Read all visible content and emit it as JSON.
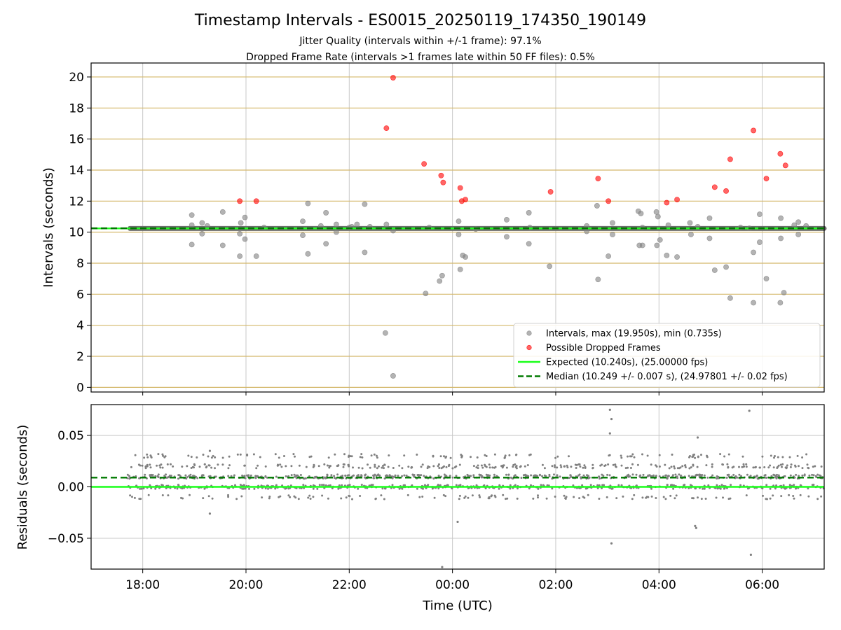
{
  "chart_data": {
    "type": "scatter",
    "title": "Timestamp Intervals - ES0015_20250119_174350_190149",
    "subtitle_lines": [
      "Jitter Quality (intervals within +/-1 frame): 97.1%",
      "Dropped Frame Rate (intervals >1 frames late within 50 FF files): 0.5%"
    ],
    "x_label": "Time (UTC)",
    "x_unit": "hours since 17:00 UTC (2025-01-19)",
    "x_range": [
      17.0,
      31.2
    ],
    "x_ticks": [
      {
        "value": 18,
        "label": "18:00"
      },
      {
        "value": 20,
        "label": "20:00"
      },
      {
        "value": 22,
        "label": "22:00"
      },
      {
        "value": 24,
        "label": "00:00"
      },
      {
        "value": 26,
        "label": "02:00"
      },
      {
        "value": 28,
        "label": "04:00"
      },
      {
        "value": 30,
        "label": "06:00"
      }
    ],
    "grid": true,
    "colors": {
      "intervals": "#808080",
      "dropped": "#ff0000",
      "expected": "#1aff1a",
      "median": "#007a00",
      "grid_top": "#d4b86a",
      "grid_bottom": "#c8c8c8",
      "band": "#6e6e6e"
    },
    "top_panel": {
      "y_label": "Intervals (seconds)",
      "y_range": [
        -0.3,
        20.9
      ],
      "y_ticks": [
        0,
        2,
        4,
        6,
        8,
        10,
        12,
        14,
        16,
        18,
        20
      ],
      "legend_position": "lower-right",
      "legend": [
        {
          "key": "intervals",
          "label": "Intervals, max (19.950s), min (0.735s)",
          "marker": "dot"
        },
        {
          "key": "dropped",
          "label": "Possible Dropped Frames",
          "marker": "dot"
        },
        {
          "key": "expected",
          "label": "Expected (10.240s), (25.00000 fps)",
          "marker": "line"
        },
        {
          "key": "median",
          "label": "Median (10.249 +/- 0.007 s), (24.97801 +/- 0.02 fps)",
          "marker": "dashed"
        }
      ],
      "expected_value": 10.24,
      "median_value": 10.249,
      "baseline_x_range": [
        17.75,
        31.2
      ],
      "series": [
        {
          "name": "Intervals",
          "points": [
            [
              18.95,
              11.1
            ],
            [
              18.95,
              10.45
            ],
            [
              18.95,
              9.2
            ],
            [
              19.15,
              10.6
            ],
            [
              19.15,
              9.9
            ],
            [
              19.25,
              10.4
            ],
            [
              19.55,
              11.3
            ],
            [
              19.55,
              9.15
            ],
            [
              19.88,
              8.45
            ],
            [
              19.88,
              9.9
            ],
            [
              19.9,
              10.6
            ],
            [
              19.98,
              9.55
            ],
            [
              19.98,
              10.95
            ],
            [
              20.2,
              8.45
            ],
            [
              20.35,
              10.3
            ],
            [
              21.1,
              10.7
            ],
            [
              21.1,
              9.8
            ],
            [
              21.2,
              11.85
            ],
            [
              21.2,
              8.6
            ],
            [
              21.45,
              10.4
            ],
            [
              21.55,
              11.25
            ],
            [
              21.55,
              9.25
            ],
            [
              21.75,
              10.5
            ],
            [
              21.75,
              10.0
            ],
            [
              22.0,
              10.3
            ],
            [
              22.05,
              10.35
            ],
            [
              22.15,
              10.5
            ],
            [
              22.3,
              11.8
            ],
            [
              22.3,
              8.7
            ],
            [
              22.4,
              10.35
            ],
            [
              22.7,
              3.5
            ],
            [
              22.72,
              10.5
            ],
            [
              22.85,
              0.74
            ],
            [
              22.85,
              10.1
            ],
            [
              23.48,
              6.05
            ],
            [
              23.55,
              10.3
            ],
            [
              23.75,
              6.85
            ],
            [
              23.8,
              7.2
            ],
            [
              24.12,
              10.7
            ],
            [
              24.12,
              9.85
            ],
            [
              24.15,
              7.6
            ],
            [
              24.2,
              8.5
            ],
            [
              24.25,
              8.4
            ],
            [
              24.45,
              10.2
            ],
            [
              25.05,
              10.8
            ],
            [
              25.05,
              9.7
            ],
            [
              25.48,
              11.25
            ],
            [
              25.48,
              9.25
            ],
            [
              25.5,
              10.3
            ],
            [
              25.88,
              7.8
            ],
            [
              26.6,
              10.4
            ],
            [
              26.6,
              10.05
            ],
            [
              26.8,
              11.7
            ],
            [
              26.82,
              6.95
            ],
            [
              27.02,
              8.45
            ],
            [
              27.1,
              10.6
            ],
            [
              27.1,
              9.85
            ],
            [
              27.6,
              11.35
            ],
            [
              27.62,
              9.15
            ],
            [
              27.65,
              11.2
            ],
            [
              27.68,
              9.15
            ],
            [
              27.68,
              10.3
            ],
            [
              27.95,
              11.3
            ],
            [
              27.96,
              9.15
            ],
            [
              27.98,
              11.0
            ],
            [
              28.02,
              9.5
            ],
            [
              28.15,
              8.5
            ],
            [
              28.18,
              10.45
            ],
            [
              28.35,
              8.4
            ],
            [
              28.6,
              10.6
            ],
            [
              28.62,
              9.85
            ],
            [
              28.75,
              10.35
            ],
            [
              28.98,
              10.9
            ],
            [
              28.98,
              9.6
            ],
            [
              29.08,
              7.55
            ],
            [
              29.3,
              7.75
            ],
            [
              29.38,
              5.75
            ],
            [
              29.58,
              10.3
            ],
            [
              29.75,
              10.25
            ],
            [
              29.83,
              5.45
            ],
            [
              29.83,
              8.7
            ],
            [
              29.95,
              11.15
            ],
            [
              29.95,
              9.35
            ],
            [
              30.08,
              7.0
            ],
            [
              30.35,
              5.45
            ],
            [
              30.36,
              10.9
            ],
            [
              30.36,
              9.6
            ],
            [
              30.42,
              6.1
            ],
            [
              30.62,
              10.45
            ],
            [
              30.7,
              10.65
            ],
            [
              30.7,
              9.85
            ],
            [
              30.85,
              10.4
            ]
          ]
        },
        {
          "name": "Possible Dropped Frames",
          "points": [
            [
              19.88,
              12.0
            ],
            [
              20.2,
              12.0
            ],
            [
              22.72,
              16.7
            ],
            [
              22.85,
              19.95
            ],
            [
              23.45,
              14.4
            ],
            [
              23.78,
              13.65
            ],
            [
              23.82,
              13.2
            ],
            [
              24.15,
              12.85
            ],
            [
              24.18,
              12.0
            ],
            [
              24.25,
              12.1
            ],
            [
              25.9,
              12.6
            ],
            [
              26.82,
              13.45
            ],
            [
              27.02,
              12.0
            ],
            [
              28.15,
              11.9
            ],
            [
              28.35,
              12.1
            ],
            [
              29.08,
              12.9
            ],
            [
              29.3,
              12.65
            ],
            [
              29.38,
              14.7
            ],
            [
              29.83,
              16.55
            ],
            [
              30.08,
              13.45
            ],
            [
              30.35,
              15.05
            ],
            [
              30.45,
              14.3
            ]
          ]
        }
      ]
    },
    "bottom_panel": {
      "y_label": "Residuals (seconds)",
      "y_range": [
        -0.08,
        0.08
      ],
      "y_ticks": [
        {
          "value": 0.05,
          "label": "0.05"
        },
        {
          "value": 0.0,
          "label": "0.00"
        },
        {
          "value": -0.05,
          "label": "−0.05"
        }
      ],
      "expected_value": 0.0,
      "median_value": 0.009,
      "residual_x_range": [
        17.7,
        31.2
      ],
      "residual_levels": [
        -0.01,
        0.0,
        0.01,
        0.02,
        0.03
      ],
      "outliers": [
        [
          19.3,
          0.035
        ],
        [
          19.3,
          -0.026
        ],
        [
          24.1,
          -0.034
        ],
        [
          23.8,
          -0.078
        ],
        [
          27.05,
          0.075
        ],
        [
          27.08,
          0.066
        ],
        [
          27.05,
          0.052
        ],
        [
          27.08,
          -0.055
        ],
        [
          28.75,
          0.048
        ],
        [
          28.7,
          -0.038
        ],
        [
          28.72,
          -0.04
        ],
        [
          29.75,
          0.074
        ],
        [
          29.78,
          -0.066
        ]
      ]
    }
  }
}
